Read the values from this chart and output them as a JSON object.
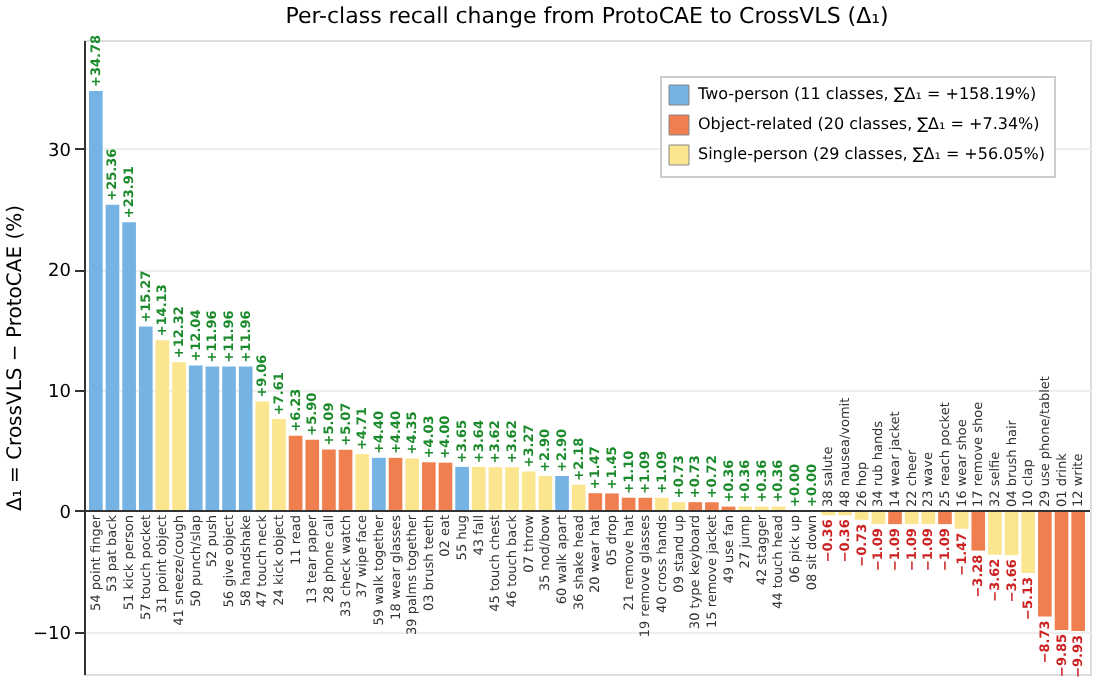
{
  "chart_data": {
    "type": "bar",
    "title": "Per-class recall change from ProtoCAE to CrossVLS (Δ₁)",
    "ylabel": "Δ₁ = CrossVLS − ProtoCAE (%)",
    "categories": [
      "54 point finger",
      "53 pat back",
      "51 kick person",
      "57 touch pocket",
      "31 point object",
      "41 sneeze/cough",
      "50 punch/slap",
      "52 push",
      "56 give object",
      "58 handshake",
      "47 touch neck",
      "24 kick object",
      "11 read",
      "13 tear paper",
      "28 phone call",
      "33 check watch",
      "37 wipe face",
      "59 walk together",
      "18 wear glasses",
      "39 palms together",
      "03 brush teeth",
      "02 eat",
      "55 hug",
      "43 fall",
      "45 touch chest",
      "46 touch back",
      "07 throw",
      "35 nod/bow",
      "60 walk apart",
      "36 shake head",
      "20 wear hat",
      "05 drop",
      "21 remove hat",
      "19 remove glasses",
      "40 cross hands",
      "09 stand up",
      "30 type keyboard",
      "15 remove jacket",
      "49 use fan",
      "27 jump",
      "42 stagger",
      "44 touch head",
      "06 pick up",
      "08 sit down",
      "38 salute",
      "48 nausea/vomit",
      "26 hop",
      "34 rub hands",
      "14 wear jacket",
      "22 cheer",
      "23 wave",
      "25 reach pocket",
      "16 wear shoe",
      "17 remove shoe",
      "32 selfie",
      "04 brush hair",
      "10 clap",
      "29 use phone/tablet",
      "01 drink",
      "12 write"
    ],
    "series": [
      {
        "name": "Two-person (11 classes, ∑Δ₁ = +158.19%)",
        "color": "#74b3e3",
        "values": [
          34.78,
          25.36,
          23.91,
          15.27,
          null,
          null,
          12.04,
          11.96,
          11.96,
          11.96,
          null,
          null,
          null,
          null,
          null,
          null,
          null,
          4.4,
          null,
          null,
          null,
          null,
          3.65,
          null,
          null,
          null,
          null,
          null,
          2.9,
          null,
          null,
          null,
          null,
          null,
          null,
          null,
          null,
          null,
          null,
          null,
          null,
          null,
          null,
          null,
          null,
          null,
          null,
          null,
          null,
          null,
          null,
          null,
          null,
          null,
          null,
          null,
          null,
          null,
          null,
          null
        ],
        "value_labels": [
          "+34.78",
          "+25.36",
          "+23.91",
          "+15.27",
          null,
          null,
          "+12.04",
          "+11.96",
          "+11.96",
          "+11.96",
          null,
          null,
          null,
          null,
          null,
          null,
          null,
          "+4.40",
          null,
          null,
          null,
          null,
          "+3.65",
          null,
          null,
          null,
          null,
          null,
          "+2.90",
          null,
          null,
          null,
          null,
          null,
          null,
          null,
          null,
          null,
          null,
          null,
          null,
          null,
          null,
          null,
          null,
          null,
          null,
          null,
          null,
          null,
          null,
          null,
          null,
          null,
          null,
          null,
          null,
          null,
          null,
          null
        ]
      },
      {
        "name": "Object-related (20 classes, ∑Δ₁ = +7.34%)",
        "color": "#f07f4f",
        "values": [
          null,
          null,
          null,
          null,
          null,
          null,
          null,
          null,
          null,
          null,
          null,
          null,
          6.23,
          5.9,
          5.09,
          5.07,
          null,
          null,
          4.4,
          null,
          4.03,
          4.0,
          null,
          null,
          null,
          null,
          null,
          null,
          null,
          null,
          1.47,
          1.45,
          1.1,
          1.09,
          null,
          null,
          0.73,
          0.72,
          0.36,
          null,
          null,
          null,
          null,
          null,
          null,
          null,
          null,
          null,
          -1.09,
          null,
          null,
          -1.09,
          null,
          -3.28,
          null,
          null,
          null,
          -8.73,
          -9.85,
          -9.93
        ],
        "value_labels": [
          null,
          null,
          null,
          null,
          null,
          null,
          null,
          null,
          null,
          null,
          null,
          null,
          "+6.23",
          "+5.90",
          "+5.09",
          "+5.07",
          null,
          null,
          "+4.40",
          null,
          "+4.03",
          "+4.00",
          null,
          null,
          null,
          null,
          null,
          null,
          null,
          null,
          "+1.47",
          "+1.45",
          "+1.10",
          "+1.09",
          null,
          null,
          "+0.73",
          "+0.72",
          "+0.36",
          null,
          null,
          null,
          null,
          null,
          null,
          null,
          null,
          null,
          "−1.09",
          null,
          null,
          "−1.09",
          null,
          "−3.28",
          null,
          null,
          null,
          "−8.73",
          "−9.85",
          "−9.93"
        ]
      },
      {
        "name": "Single-person (29 classes, ∑Δ₁ = +56.05%)",
        "color": "#fbe58e",
        "values": [
          null,
          null,
          null,
          null,
          14.13,
          12.32,
          null,
          null,
          null,
          null,
          9.06,
          7.61,
          null,
          null,
          null,
          null,
          4.71,
          null,
          null,
          4.35,
          null,
          null,
          null,
          3.64,
          3.62,
          3.62,
          3.27,
          2.9,
          null,
          2.18,
          null,
          null,
          null,
          null,
          1.09,
          0.73,
          null,
          null,
          null,
          0.36,
          0.36,
          0.36,
          0.0,
          0.0,
          -0.36,
          -0.36,
          -0.73,
          -1.09,
          null,
          -1.09,
          -1.09,
          null,
          -1.47,
          null,
          -3.62,
          -3.66,
          -5.13,
          null,
          null,
          null
        ],
        "value_labels": [
          null,
          null,
          null,
          null,
          "+14.13",
          "+12.32",
          null,
          null,
          null,
          null,
          "+9.06",
          "+7.61",
          null,
          null,
          null,
          null,
          "+4.71",
          null,
          null,
          "+4.35",
          null,
          null,
          null,
          "+3.64",
          "+3.62",
          "+3.62",
          "+3.27",
          "+2.90",
          null,
          "+2.18",
          null,
          null,
          null,
          null,
          "+1.09",
          "+0.73",
          null,
          null,
          null,
          "+0.36",
          "+0.36",
          "+0.36",
          "+0.00",
          "+0.00",
          "−0.36",
          "−0.36",
          "−0.73",
          "−1.09",
          null,
          "−1.09",
          "−1.09",
          null,
          "−1.47",
          null,
          "−3.62",
          "−3.66",
          "−5.13",
          null,
          null,
          null
        ]
      }
    ],
    "ylim": [
      -13.5,
      39
    ],
    "yticks": [
      -10,
      0,
      10,
      20,
      30
    ],
    "grid": "y",
    "legend": "top right"
  }
}
